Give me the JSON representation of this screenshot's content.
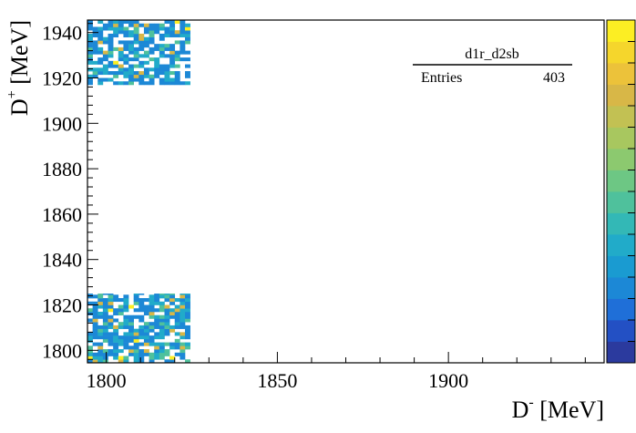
{
  "chart_data": {
    "type": "heatmap",
    "title": "",
    "xlabel": "D",
    "xlabel_sup": "-",
    "xlabel_unit": " [MeV]",
    "ylabel": "D",
    "ylabel_sup": "+",
    "ylabel_unit": " [MeV]",
    "xlim": [
      1794.5,
      1945.5
    ],
    "ylim": [
      1794.5,
      1945.5
    ],
    "x_ticks": [
      {
        "value": 1800,
        "label": "1800"
      },
      {
        "value": 1850,
        "label": "1850"
      },
      {
        "value": 1900,
        "label": "1900"
      }
    ],
    "y_ticks": [
      {
        "value": 1800,
        "label": "1800"
      },
      {
        "value": 1820,
        "label": "1820"
      },
      {
        "value": 1840,
        "label": "1840"
      },
      {
        "value": 1860,
        "label": "1860"
      },
      {
        "value": 1880,
        "label": "1880"
      },
      {
        "value": 1900,
        "label": "1900"
      },
      {
        "value": 1920,
        "label": "1920"
      },
      {
        "value": 1940,
        "label": "1940"
      }
    ],
    "bin_width": 1.5,
    "stats_box": {
      "name": "d1r_d2sb",
      "entries_label": "Entries",
      "entries_value": "403"
    },
    "regions": [
      {
        "x_range": [
          1794.5,
          1824.5
        ],
        "y_range": [
          1794.5,
          1825.0
        ],
        "fill_fraction": 0.72
      },
      {
        "x_range": [
          1794.5,
          1824.5
        ],
        "y_range": [
          1917.0,
          1945.5
        ],
        "fill_fraction": 0.68
      }
    ],
    "grid": false,
    "legend": "none",
    "colorbar": {
      "position": "right",
      "palette": [
        "#2b3a9e",
        "#2350c4",
        "#1f6fd8",
        "#1c88d6",
        "#1a9bd1",
        "#21abc9",
        "#33b8b6",
        "#4fc19c",
        "#6dc784",
        "#8cc96f",
        "#a8c75f",
        "#c2c153",
        "#d8b747",
        "#ecc23a",
        "#f5d62c",
        "#fcee23"
      ]
    }
  }
}
